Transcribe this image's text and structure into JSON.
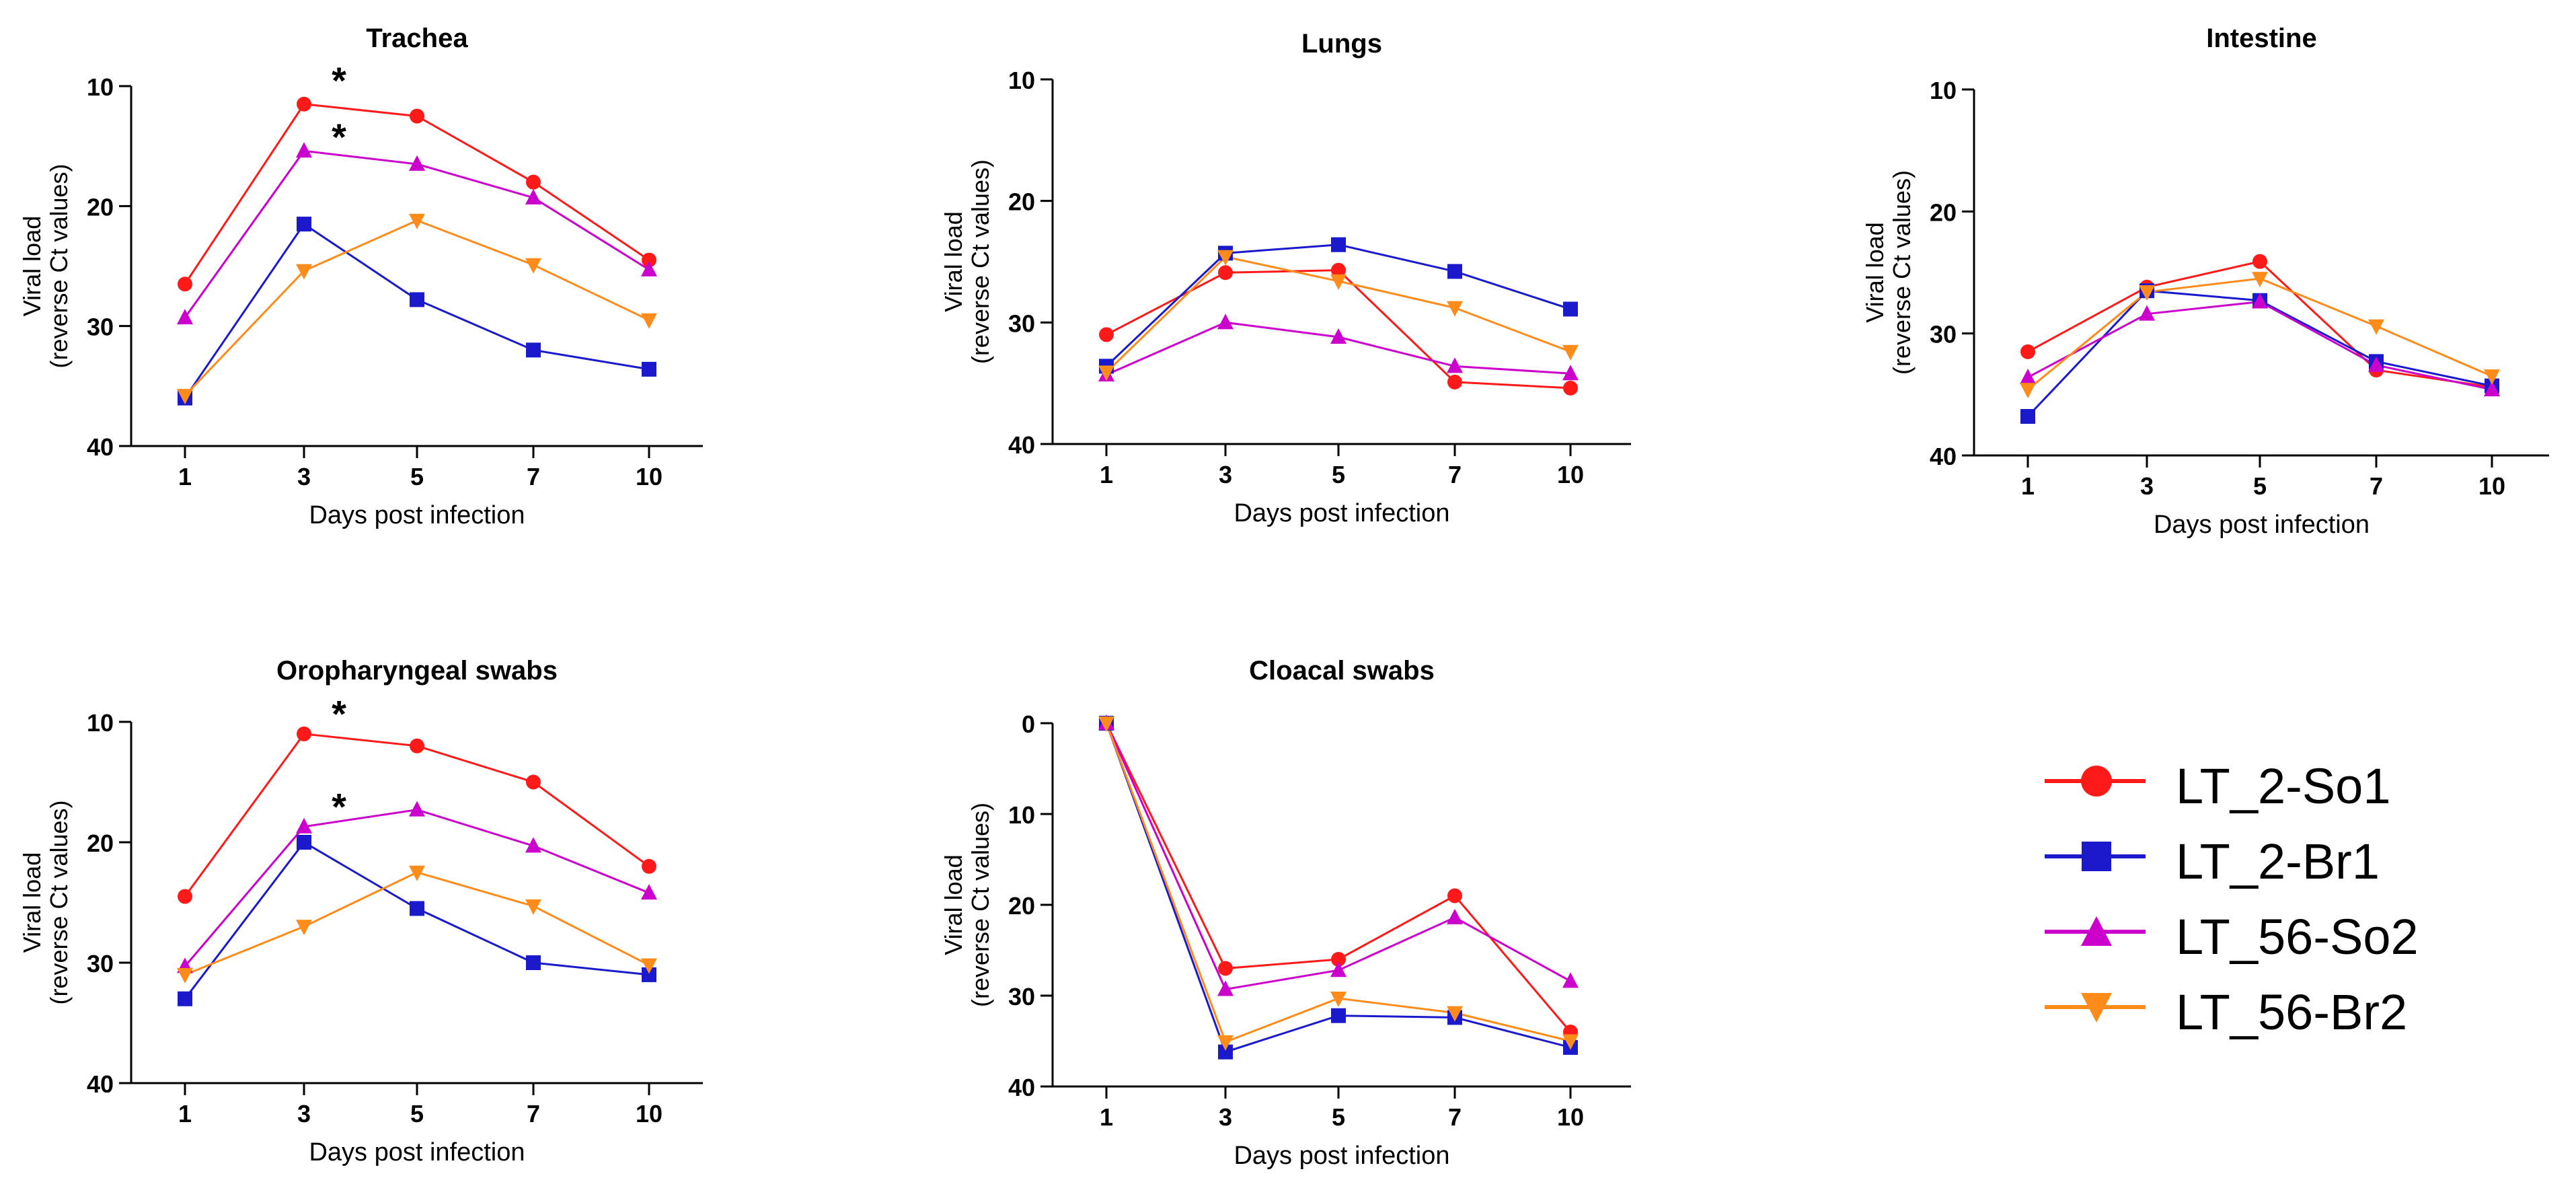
{
  "colors": {
    "LT_2-So1": "#ff1a1a",
    "LT_2-Br1": "#1a1acc",
    "LT_56-So2": "#cc00cc",
    "LT_56-Br2": "#ff8c1a"
  },
  "legend": {
    "entries": [
      {
        "name": "LT_2-So1",
        "marker": "circle",
        "color": "#ff1a1a"
      },
      {
        "name": "LT_2-Br1",
        "marker": "square",
        "color": "#1a1acc"
      },
      {
        "name": "LT_56-So2",
        "marker": "triangle-up",
        "color": "#cc00cc"
      },
      {
        "name": "LT_56-Br2",
        "marker": "triangle-down",
        "color": "#ff8c1a"
      }
    ]
  },
  "chart_data": [
    {
      "type": "line",
      "title": "Trachea",
      "xlabel": "Days post infection",
      "ylabel": "Viral load",
      "ylabel2": "(reverse Ct values)",
      "categories": [
        "1",
        "3",
        "5",
        "7",
        "10"
      ],
      "ylim": [
        40,
        10
      ],
      "yticks": [
        10,
        20,
        30,
        40
      ],
      "y_reversed": true,
      "series": [
        {
          "name": "LT_2-So1",
          "values": [
            26.5,
            11.5,
            12.5,
            18,
            24.5
          ]
        },
        {
          "name": "LT_2-Br1",
          "values": [
            36,
            21.5,
            27.8,
            32,
            33.6
          ]
        },
        {
          "name": "LT_56-So2",
          "values": [
            29.3,
            15.4,
            16.5,
            19.3,
            25.3
          ]
        },
        {
          "name": "LT_56-Br2",
          "values": [
            35.8,
            25.4,
            21.2,
            24.9,
            29.5
          ]
        }
      ],
      "annotations": [
        {
          "text": "*",
          "x": "3",
          "y": 9.5
        },
        {
          "text": "*",
          "x": "3",
          "y": 14.2
        }
      ]
    },
    {
      "type": "line",
      "title": "Lungs",
      "xlabel": "Days post infection",
      "ylabel": "Viral load",
      "ylabel2": "(reverse Ct values)",
      "categories": [
        "1",
        "3",
        "5",
        "7",
        "10"
      ],
      "ylim": [
        40,
        10
      ],
      "yticks": [
        10,
        20,
        30,
        40
      ],
      "y_reversed": true,
      "series": [
        {
          "name": "LT_2-So1",
          "values": [
            31,
            25.9,
            25.7,
            34.9,
            35.4
          ]
        },
        {
          "name": "LT_2-Br1",
          "values": [
            33.6,
            24.3,
            23.6,
            25.8,
            28.9
          ]
        },
        {
          "name": "LT_56-So2",
          "values": [
            34.3,
            30,
            31.2,
            33.6,
            34.2
          ]
        },
        {
          "name": "LT_56-Br2",
          "values": [
            34.1,
            24.6,
            26.6,
            28.8,
            32.4
          ]
        }
      ],
      "annotations": []
    },
    {
      "type": "line",
      "title": "Intestine",
      "xlabel": "Days post infection",
      "ylabel": "Viral load",
      "ylabel2": "(reverse Ct values)",
      "categories": [
        "1",
        "3",
        "5",
        "7",
        "10"
      ],
      "ylim": [
        40,
        10
      ],
      "yticks": [
        10,
        20,
        30,
        40
      ],
      "y_reversed": true,
      "series": [
        {
          "name": "LT_2-So1",
          "values": [
            31.5,
            26.2,
            24.1,
            33,
            34.4
          ]
        },
        {
          "name": "LT_2-Br1",
          "values": [
            36.8,
            26.5,
            27.3,
            32.3,
            34.3
          ]
        },
        {
          "name": "LT_56-So2",
          "values": [
            33.6,
            28.4,
            27.4,
            32.6,
            34.6
          ]
        },
        {
          "name": "LT_56-Br2",
          "values": [
            34.6,
            26.6,
            25.5,
            29.4,
            33.5
          ]
        }
      ],
      "annotations": []
    },
    {
      "type": "line",
      "title": "Oropharyngeal  swabs",
      "xlabel": "Days post infection",
      "ylabel": "Viral load",
      "ylabel2": "(reverse Ct values)",
      "categories": [
        "1",
        "3",
        "5",
        "7",
        "10"
      ],
      "ylim": [
        40,
        10
      ],
      "yticks": [
        10,
        20,
        30,
        40
      ],
      "y_reversed": true,
      "series": [
        {
          "name": "LT_2-So1",
          "values": [
            24.5,
            11,
            12,
            15,
            22
          ]
        },
        {
          "name": "LT_2-Br1",
          "values": [
            33,
            20,
            25.5,
            30,
            31
          ]
        },
        {
          "name": "LT_56-So2",
          "values": [
            30.3,
            18.7,
            17.3,
            20.3,
            24.2
          ]
        },
        {
          "name": "LT_56-Br2",
          "values": [
            31,
            27,
            22.5,
            25.3,
            30.2
          ]
        }
      ],
      "annotations": [
        {
          "text": "*",
          "x": "3",
          "y": 9.3
        },
        {
          "text": "*",
          "x": "3",
          "y": 17
        }
      ]
    },
    {
      "type": "line",
      "title": "Cloacal  swabs",
      "xlabel": "Days post infection",
      "ylabel": "Viral load",
      "ylabel2": "(reverse Ct values)",
      "categories": [
        "1",
        "3",
        "5",
        "7",
        "10"
      ],
      "ylim": [
        40,
        0
      ],
      "yticks": [
        0,
        10,
        20,
        30,
        40
      ],
      "y_reversed": true,
      "series": [
        {
          "name": "LT_2-So1",
          "values": [
            0,
            27,
            26,
            19,
            34
          ]
        },
        {
          "name": "LT_2-Br1",
          "values": [
            0,
            36.2,
            32.2,
            32.4,
            35.7
          ]
        },
        {
          "name": "LT_56-So2",
          "values": [
            0,
            29.3,
            27.2,
            21.4,
            28.4
          ]
        },
        {
          "name": "LT_56-Br2",
          "values": [
            0,
            35.1,
            30.3,
            31.9,
            35
          ]
        }
      ],
      "annotations": []
    }
  ]
}
